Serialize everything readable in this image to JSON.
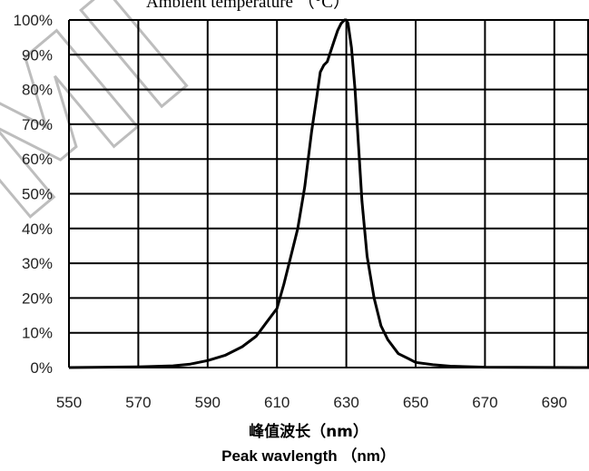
{
  "chart_data": {
    "type": "line",
    "top_title": "Ambient temperature （°C）",
    "xlabel_cn": "峰值波长（nm）",
    "xlabel_en": "Peak wavlength （nm）",
    "watermark": "MI",
    "xlim": [
      550,
      700
    ],
    "ylim": [
      0,
      100
    ],
    "xticks": [
      550,
      570,
      590,
      610,
      630,
      650,
      670,
      690
    ],
    "yticks": [
      0,
      10,
      20,
      30,
      40,
      50,
      60,
      70,
      80,
      90,
      100
    ],
    "ytick_labels": [
      "0%",
      "10%",
      "20%",
      "30%",
      "40%",
      "50%",
      "60%",
      "70%",
      "80%",
      "90%",
      "100%"
    ],
    "grid": true,
    "line_color": "#000000",
    "series": [
      {
        "x": [
          550,
          570,
          580,
          585,
          590,
          595,
          600,
          604,
          607,
          610,
          612,
          614,
          616,
          618,
          620,
          621.5,
          622.5,
          623.5,
          624.5,
          625.5,
          626.5,
          627.5,
          628.5,
          629.5,
          630,
          630.5,
          631.5,
          632.5,
          633.5,
          634.5,
          636,
          638,
          640,
          642,
          645,
          648,
          650,
          655,
          660,
          670,
          700
        ],
        "y": [
          0,
          0.2,
          0.5,
          1,
          2,
          3.5,
          6,
          9,
          13,
          17,
          24,
          32,
          40,
          52,
          68,
          78,
          85,
          87,
          88,
          91,
          94,
          97,
          99,
          100,
          100,
          99,
          92,
          80,
          64,
          48,
          32,
          20,
          12,
          8,
          4,
          2.5,
          1.5,
          0.8,
          0.4,
          0.1,
          0
        ]
      }
    ]
  }
}
